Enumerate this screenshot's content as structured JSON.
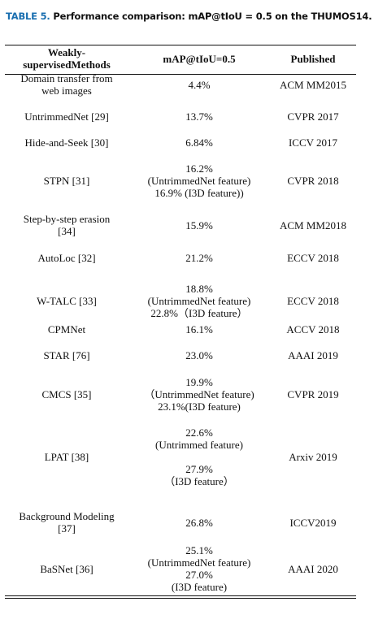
{
  "caption": {
    "label": "TABLE 5.",
    "text": "Performance comparison: mAP@tIoU = 0.5 on the THUMOS14."
  },
  "header": {
    "col1": [
      "Weakly-supervised",
      "Methods"
    ],
    "col2": [
      "mAP@tIoU=0.5"
    ],
    "col3": [
      "Published"
    ]
  },
  "rows": [
    {
      "method": [
        "Domain transfer from",
        "web images"
      ],
      "map": [
        "4.4%"
      ],
      "published": [
        "ACM MM2015"
      ]
    },
    {
      "method": [
        "UntrimmedNet [29]"
      ],
      "map": [
        "13.7%"
      ],
      "published": [
        "CVPR 2017"
      ]
    },
    {
      "method": [
        "Hide-and-Seek [30]"
      ],
      "map": [
        "6.84%"
      ],
      "published": [
        "ICCV 2017"
      ]
    },
    {
      "method": [
        "STPN [31]"
      ],
      "map": [
        "16.2%",
        "(UntrimmedNet feature)",
        "16.9% (I3D feature))"
      ],
      "published": [
        "CVPR 2018"
      ]
    },
    {
      "method": [
        "Step-by-step erasion",
        "[34]"
      ],
      "map": [
        "15.9%"
      ],
      "published": [
        "ACM MM2018"
      ]
    },
    {
      "method": [
        "AutoLoc [32]"
      ],
      "map": [
        "21.2%"
      ],
      "published": [
        "ECCV 2018"
      ]
    },
    {
      "method": [
        "W-TALC [33]"
      ],
      "map": [
        "18.8%",
        "(UntrimmedNet feature)",
        "22.8%（I3D feature）"
      ],
      "published": [
        "ECCV 2018"
      ]
    },
    {
      "method": [
        "CPMNet"
      ],
      "map": [
        "16.1%"
      ],
      "published": [
        "ACCV 2018"
      ]
    },
    {
      "method": [
        "STAR [76]"
      ],
      "map": [
        "23.0%"
      ],
      "published": [
        "AAAI 2019"
      ]
    },
    {
      "method": [
        "CMCS [35]"
      ],
      "map": [
        "19.9%",
        "（UntrimmedNet feature)",
        "23.1%(I3D feature)"
      ],
      "published": [
        "CVPR 2019"
      ]
    },
    {
      "method": [
        "LPAT [38]"
      ],
      "map": [
        "22.6%",
        "(Untrimmed feature)",
        "",
        "27.9%",
        "（I3D feature）"
      ],
      "published": [
        "Arxiv 2019"
      ]
    },
    {
      "method": [
        "Background Modeling",
        "[37]"
      ],
      "map": [
        "26.8%"
      ],
      "published": [
        "ICCV2019"
      ]
    },
    {
      "method": [
        "BaSNet [36]"
      ],
      "map": [
        "25.1%",
        "(UntrimmedNet feature)",
        "27.0%",
        "(I3D feature)"
      ],
      "published": [
        "AAAI 2020"
      ]
    }
  ]
}
